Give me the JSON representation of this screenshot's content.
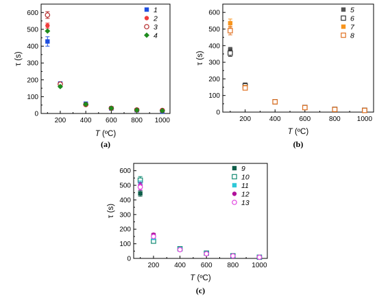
{
  "chart_data": [
    {
      "type": "scatter",
      "panel_label": "(a)",
      "xlabel_var": "T",
      "xlabel_unit": " (ºC)",
      "ylabel_var": "τ",
      "ylabel_unit": " (s)",
      "xlim": [
        50,
        1060
      ],
      "ylim": [
        0,
        650
      ],
      "xticks": [
        200,
        400,
        600,
        800,
        1000
      ],
      "yticks": [
        0,
        100,
        200,
        300,
        400,
        500,
        600
      ],
      "legend_position": "top-right",
      "series": [
        {
          "name": "1",
          "color": "#1f4fe0",
          "marker": "square-filled",
          "points": [
            {
              "x": 100,
              "y": 428,
              "err": 28
            },
            {
              "x": 200,
              "y": 178,
              "err": 8
            },
            {
              "x": 400,
              "y": 58,
              "err": 5
            },
            {
              "x": 600,
              "y": 30,
              "err": 3
            },
            {
              "x": 800,
              "y": 19,
              "err": 3
            },
            {
              "x": 1000,
              "y": 12,
              "err": 2
            }
          ]
        },
        {
          "name": "2",
          "color": "#f03c3c",
          "marker": "circle-filled",
          "points": [
            {
              "x": 100,
              "y": 522,
              "err": 15
            },
            {
              "x": 200,
              "y": 172,
              "err": 6
            },
            {
              "x": 400,
              "y": 52,
              "err": 4
            },
            {
              "x": 600,
              "y": 30,
              "err": 3
            },
            {
              "x": 800,
              "y": 20,
              "err": 3
            },
            {
              "x": 1000,
              "y": 17,
              "err": 2
            }
          ]
        },
        {
          "name": "3",
          "color": "#b22222",
          "marker": "circle-open",
          "points": [
            {
              "x": 100,
              "y": 585,
              "err": 20
            },
            {
              "x": 200,
              "y": 175,
              "err": 7
            },
            {
              "x": 400,
              "y": 53,
              "err": 4
            },
            {
              "x": 600,
              "y": 31,
              "err": 3
            },
            {
              "x": 800,
              "y": 21,
              "err": 3
            },
            {
              "x": 1000,
              "y": 18,
              "err": 2
            }
          ]
        },
        {
          "name": "4",
          "color": "#1e8c1e",
          "marker": "diamond-filled",
          "points": [
            {
              "x": 100,
              "y": 490,
              "err": 0
            },
            {
              "x": 200,
              "y": 160,
              "err": 5
            },
            {
              "x": 400,
              "y": 55,
              "err": 4
            },
            {
              "x": 600,
              "y": 31,
              "err": 3
            },
            {
              "x": 800,
              "y": 20,
              "err": 3
            },
            {
              "x": 1000,
              "y": 16,
              "err": 2
            }
          ]
        }
      ]
    },
    {
      "type": "scatter",
      "panel_label": "(b)",
      "xlabel_var": "T",
      "xlabel_unit": " (ºC)",
      "ylabel_var": "τ",
      "ylabel_unit": " (s)",
      "xlim": [
        50,
        1060
      ],
      "ylim": [
        0,
        650
      ],
      "xticks": [
        200,
        400,
        600,
        800,
        1000
      ],
      "yticks": [
        0,
        100,
        200,
        300,
        400,
        500,
        600
      ],
      "legend_position": "top-right",
      "series": [
        {
          "name": "5",
          "color": "#555555",
          "marker": "square-filled",
          "points": [
            {
              "x": 100,
              "y": 375,
              "err": 15
            },
            {
              "x": 200,
              "y": 165,
              "err": 8
            },
            {
              "x": 400,
              "y": 65,
              "err": 5
            },
            {
              "x": 600,
              "y": 30,
              "err": 3
            },
            {
              "x": 800,
              "y": 18,
              "err": 3
            },
            {
              "x": 1000,
              "y": 12,
              "err": 2
            }
          ]
        },
        {
          "name": "6",
          "color": "#333333",
          "marker": "square-open",
          "points": [
            {
              "x": 100,
              "y": 355,
              "err": 20
            },
            {
              "x": 200,
              "y": 158,
              "err": 8
            },
            {
              "x": 400,
              "y": 62,
              "err": 5
            },
            {
              "x": 600,
              "y": 28,
              "err": 3
            },
            {
              "x": 800,
              "y": 17,
              "err": 3
            },
            {
              "x": 1000,
              "y": 11,
              "err": 2
            }
          ]
        },
        {
          "name": "7",
          "color": "#f7941d",
          "marker": "square-filled",
          "points": [
            {
              "x": 100,
              "y": 535,
              "err": 25
            },
            {
              "x": 200,
              "y": 150,
              "err": 10
            },
            {
              "x": 400,
              "y": 60,
              "err": 5
            },
            {
              "x": 600,
              "y": 28,
              "err": 3
            },
            {
              "x": 800,
              "y": 17,
              "err": 3
            },
            {
              "x": 1000,
              "y": 10,
              "err": 2
            }
          ]
        },
        {
          "name": "8",
          "color": "#e07020",
          "marker": "square-open",
          "points": [
            {
              "x": 100,
              "y": 490,
              "err": 25
            },
            {
              "x": 200,
              "y": 145,
              "err": 10
            },
            {
              "x": 400,
              "y": 62,
              "err": 5
            },
            {
              "x": 600,
              "y": 27,
              "err": 3
            },
            {
              "x": 800,
              "y": 16,
              "err": 3
            },
            {
              "x": 1000,
              "y": 10,
              "err": 2
            }
          ]
        }
      ]
    },
    {
      "type": "scatter",
      "panel_label": "(c)",
      "xlabel_var": "T",
      "xlabel_unit": " (ºC)",
      "ylabel_var": "τ",
      "ylabel_unit": " (s)",
      "xlim": [
        50,
        1060
      ],
      "ylim": [
        0,
        650
      ],
      "xticks": [
        200,
        400,
        600,
        800,
        1000
      ],
      "yticks": [
        0,
        100,
        200,
        300,
        400,
        500,
        600
      ],
      "legend_position": "top-right",
      "series": [
        {
          "name": "9",
          "color": "#0f5e4a",
          "marker": "square-filled",
          "points": [
            {
              "x": 100,
              "y": 445,
              "err": 20
            },
            {
              "x": 200,
              "y": 155,
              "err": 10
            },
            {
              "x": 400,
              "y": 65,
              "err": 5
            },
            {
              "x": 600,
              "y": 35,
              "err": 3
            },
            {
              "x": 800,
              "y": 18,
              "err": 3
            },
            {
              "x": 1000,
              "y": 8,
              "err": 2
            }
          ]
        },
        {
          "name": "10",
          "color": "#128a72",
          "marker": "square-open",
          "points": [
            {
              "x": 100,
              "y": 535,
              "err": 25
            },
            {
              "x": 200,
              "y": 118,
              "err": 10
            },
            {
              "x": 400,
              "y": 66,
              "err": 5
            },
            {
              "x": 600,
              "y": 36,
              "err": 3
            },
            {
              "x": 800,
              "y": 18,
              "err": 3
            },
            {
              "x": 1000,
              "y": 8,
              "err": 2
            }
          ]
        },
        {
          "name": "11",
          "color": "#2ec8d8",
          "marker": "square-filled",
          "points": [
            {
              "x": 100,
              "y": 510,
              "err": 20
            },
            {
              "x": 200,
              "y": 140,
              "err": 10
            },
            {
              "x": 400,
              "y": 63,
              "err": 5
            },
            {
              "x": 600,
              "y": 34,
              "err": 3
            },
            {
              "x": 800,
              "y": 17,
              "err": 3
            },
            {
              "x": 1000,
              "y": 8,
              "err": 2
            }
          ]
        },
        {
          "name": "12",
          "color": "#b0109a",
          "marker": "circle-filled",
          "points": [
            {
              "x": 100,
              "y": 500,
              "err": 20
            },
            {
              "x": 200,
              "y": 162,
              "err": 10
            },
            {
              "x": 400,
              "y": 62,
              "err": 5
            },
            {
              "x": 600,
              "y": 33,
              "err": 3
            },
            {
              "x": 800,
              "y": 17,
              "err": 3
            },
            {
              "x": 1000,
              "y": 8,
              "err": 2
            }
          ]
        },
        {
          "name": "13",
          "color": "#e040e0",
          "marker": "circle-open",
          "points": [
            {
              "x": 100,
              "y": 488,
              "err": 20
            },
            {
              "x": 200,
              "y": 150,
              "err": 10
            },
            {
              "x": 400,
              "y": 60,
              "err": 5
            },
            {
              "x": 600,
              "y": 32,
              "err": 3
            },
            {
              "x": 800,
              "y": 17,
              "err": 3
            },
            {
              "x": 1000,
              "y": 8,
              "err": 2
            }
          ]
        }
      ]
    }
  ]
}
